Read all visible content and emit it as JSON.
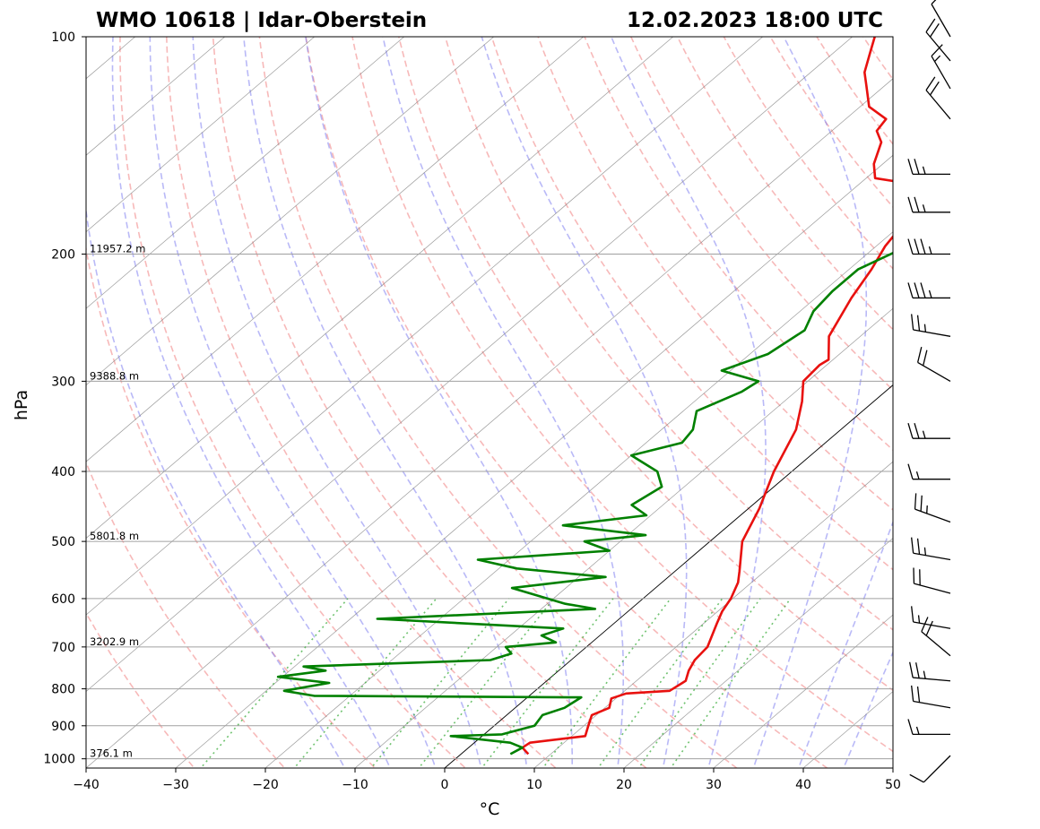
{
  "header": {
    "station": "WMO 10618 | Idar-Oberstein",
    "datetime": "12.02.2023 18:00 UTC"
  },
  "chart_data": {
    "type": "line",
    "subtype": "skew-T log-P",
    "xlabel": "°C",
    "ylabel": "hPa",
    "xlim": [
      -40,
      50
    ],
    "ylim": [
      1030,
      100
    ],
    "x_ticks": [
      -40,
      -30,
      -20,
      -10,
      0,
      10,
      20,
      30,
      40,
      50
    ],
    "y_ticks": [
      1000,
      900,
      800,
      700,
      600,
      500,
      400,
      300,
      200,
      100
    ],
    "y_scale": "log",
    "height_labels": [
      {
        "p": 1000,
        "text": "376.1 m"
      },
      {
        "p": 700,
        "text": "3202.9 m"
      },
      {
        "p": 500,
        "text": "5801.8 m"
      },
      {
        "p": 300,
        "text": "9388.8 m"
      },
      {
        "p": 200,
        "text": "11957.2 m"
      }
    ],
    "colors": {
      "temperature": "#e8110f",
      "dewpoint": "#008000",
      "dry_adiabats": "#f08080",
      "moist_adiabats": "#8080f0",
      "mixing_ratio": "#33aa33",
      "isotherms": "#7a7a7a",
      "isobars": "#a0a0a0"
    },
    "series": [
      {
        "name": "temperature",
        "points": [
          {
            "p": 985,
            "t": 7.5
          },
          {
            "p": 965,
            "t": 6.0
          },
          {
            "p": 950,
            "t": 6.2
          },
          {
            "p": 930,
            "t": 11.5
          },
          {
            "p": 900,
            "t": 10.5
          },
          {
            "p": 870,
            "t": 9.5
          },
          {
            "p": 850,
            "t": 10.5
          },
          {
            "p": 825,
            "t": 9.5
          },
          {
            "p": 812,
            "t": 10.5
          },
          {
            "p": 805,
            "t": 15.0
          },
          {
            "p": 780,
            "t": 15.5
          },
          {
            "p": 755,
            "t": 14.5
          },
          {
            "p": 730,
            "t": 13.8
          },
          {
            "p": 700,
            "t": 13.5
          },
          {
            "p": 650,
            "t": 11.5
          },
          {
            "p": 625,
            "t": 10.5
          },
          {
            "p": 600,
            "t": 9.8
          },
          {
            "p": 570,
            "t": 8.5
          },
          {
            "p": 550,
            "t": 7.2
          },
          {
            "p": 500,
            "t": 3.6
          },
          {
            "p": 450,
            "t": 1.2
          },
          {
            "p": 400,
            "t": -2.0
          },
          {
            "p": 350,
            "t": -5.0
          },
          {
            "p": 320,
            "t": -8.0
          },
          {
            "p": 300,
            "t": -10.5
          },
          {
            "p": 285,
            "t": -10.8
          },
          {
            "p": 280,
            "t": -10.5
          },
          {
            "p": 260,
            "t": -13.5
          },
          {
            "p": 230,
            "t": -16.0
          },
          {
            "p": 210,
            "t": -17.5
          },
          {
            "p": 195,
            "t": -19.0
          },
          {
            "p": 180,
            "t": -20.0
          },
          {
            "p": 165,
            "t": -22.0
          },
          {
            "p": 160,
            "t": -24.0
          },
          {
            "p": 157,
            "t": -29.0
          },
          {
            "p": 150,
            "t": -31.0
          },
          {
            "p": 140,
            "t": -33.0
          },
          {
            "p": 135,
            "t": -35.0
          },
          {
            "p": 130,
            "t": -35.5
          },
          {
            "p": 125,
            "t": -39.0
          },
          {
            "p": 117,
            "t": -42.0
          },
          {
            "p": 112,
            "t": -44.0
          },
          {
            "p": 105,
            "t": -46.0
          },
          {
            "p": 100,
            "t": -47.5
          }
        ]
      },
      {
        "name": "dewpoint",
        "points": [
          {
            "p": 985,
            "t": 5.5
          },
          {
            "p": 965,
            "t": 6.0
          },
          {
            "p": 950,
            "t": 4.0
          },
          {
            "p": 930,
            "t": -3.5
          },
          {
            "p": 925,
            "t": 2.0
          },
          {
            "p": 900,
            "t": 4.5
          },
          {
            "p": 870,
            "t": 4.0
          },
          {
            "p": 850,
            "t": 5.5
          },
          {
            "p": 822,
            "t": 6.0
          },
          {
            "p": 818,
            "t": -24.0
          },
          {
            "p": 805,
            "t": -28.0
          },
          {
            "p": 785,
            "t": -24.0
          },
          {
            "p": 770,
            "t": -30.5
          },
          {
            "p": 755,
            "t": -26.0
          },
          {
            "p": 745,
            "t": -29.0
          },
          {
            "p": 730,
            "t": -9.0
          },
          {
            "p": 715,
            "t": -7.5
          },
          {
            "p": 700,
            "t": -9.0
          },
          {
            "p": 690,
            "t": -4.0
          },
          {
            "p": 675,
            "t": -6.5
          },
          {
            "p": 660,
            "t": -5.0
          },
          {
            "p": 640,
            "t": -27.0
          },
          {
            "p": 620,
            "t": -4.0
          },
          {
            "p": 610,
            "t": -8.0
          },
          {
            "p": 580,
            "t": -16.0
          },
          {
            "p": 560,
            "t": -7.0
          },
          {
            "p": 545,
            "t": -18.0
          },
          {
            "p": 530,
            "t": -23.5
          },
          {
            "p": 515,
            "t": -10.0
          },
          {
            "p": 500,
            "t": -14.0
          },
          {
            "p": 490,
            "t": -8.0
          },
          {
            "p": 475,
            "t": -18.5
          },
          {
            "p": 460,
            "t": -10.5
          },
          {
            "p": 445,
            "t": -13.5
          },
          {
            "p": 420,
            "t": -12.5
          },
          {
            "p": 400,
            "t": -15.0
          },
          {
            "p": 380,
            "t": -20.0
          },
          {
            "p": 365,
            "t": -16.0
          },
          {
            "p": 350,
            "t": -16.5
          },
          {
            "p": 330,
            "t": -18.5
          },
          {
            "p": 310,
            "t": -16.0
          },
          {
            "p": 300,
            "t": -15.5
          },
          {
            "p": 290,
            "t": -21.0
          },
          {
            "p": 275,
            "t": -18.0
          },
          {
            "p": 255,
            "t": -17.0
          },
          {
            "p": 240,
            "t": -18.5
          },
          {
            "p": 225,
            "t": -19.0
          },
          {
            "p": 210,
            "t": -19.0
          },
          {
            "p": 195,
            "t": -16.5
          },
          {
            "p": 180,
            "t": -19.0
          },
          {
            "p": 170,
            "t": -21.0
          },
          {
            "p": 160,
            "t": -20.5
          },
          {
            "p": 145,
            "t": -16.0
          },
          {
            "p": 138,
            "t": -19.0
          },
          {
            "p": 128,
            "t": -20.5
          },
          {
            "p": 118,
            "t": -20.0
          },
          {
            "p": 112,
            "t": -20.0
          },
          {
            "p": 105,
            "t": -20.5
          },
          {
            "p": 100,
            "t": -21.0
          }
        ]
      }
    ],
    "wind_barbs": [
      {
        "p": 990,
        "dir": 225,
        "kt": 10
      },
      {
        "p": 925,
        "dir": 270,
        "kt": 15
      },
      {
        "p": 850,
        "dir": 280,
        "kt": 20
      },
      {
        "p": 780,
        "dir": 275,
        "kt": 25
      },
      {
        "p": 720,
        "dir": 310,
        "kt": 20
      },
      {
        "p": 660,
        "dir": 280,
        "kt": 15
      },
      {
        "p": 590,
        "dir": 285,
        "kt": 20
      },
      {
        "p": 530,
        "dir": 280,
        "kt": 25
      },
      {
        "p": 470,
        "dir": 290,
        "kt": 25
      },
      {
        "p": 410,
        "dir": 270,
        "kt": 15
      },
      {
        "p": 360,
        "dir": 270,
        "kt": 25
      },
      {
        "p": 300,
        "dir": 300,
        "kt": 20
      },
      {
        "p": 260,
        "dir": 280,
        "kt": 25
      },
      {
        "p": 230,
        "dir": 270,
        "kt": 35
      },
      {
        "p": 200,
        "dir": 270,
        "kt": 35
      },
      {
        "p": 175,
        "dir": 270,
        "kt": 25
      },
      {
        "p": 155,
        "dir": 270,
        "kt": 25
      },
      {
        "p": 130,
        "dir": 320,
        "kt": 20
      },
      {
        "p": 118,
        "dir": 330,
        "kt": 15
      },
      {
        "p": 108,
        "dir": 320,
        "kt": 20
      },
      {
        "p": 100,
        "dir": 330,
        "kt": 10
      }
    ]
  }
}
